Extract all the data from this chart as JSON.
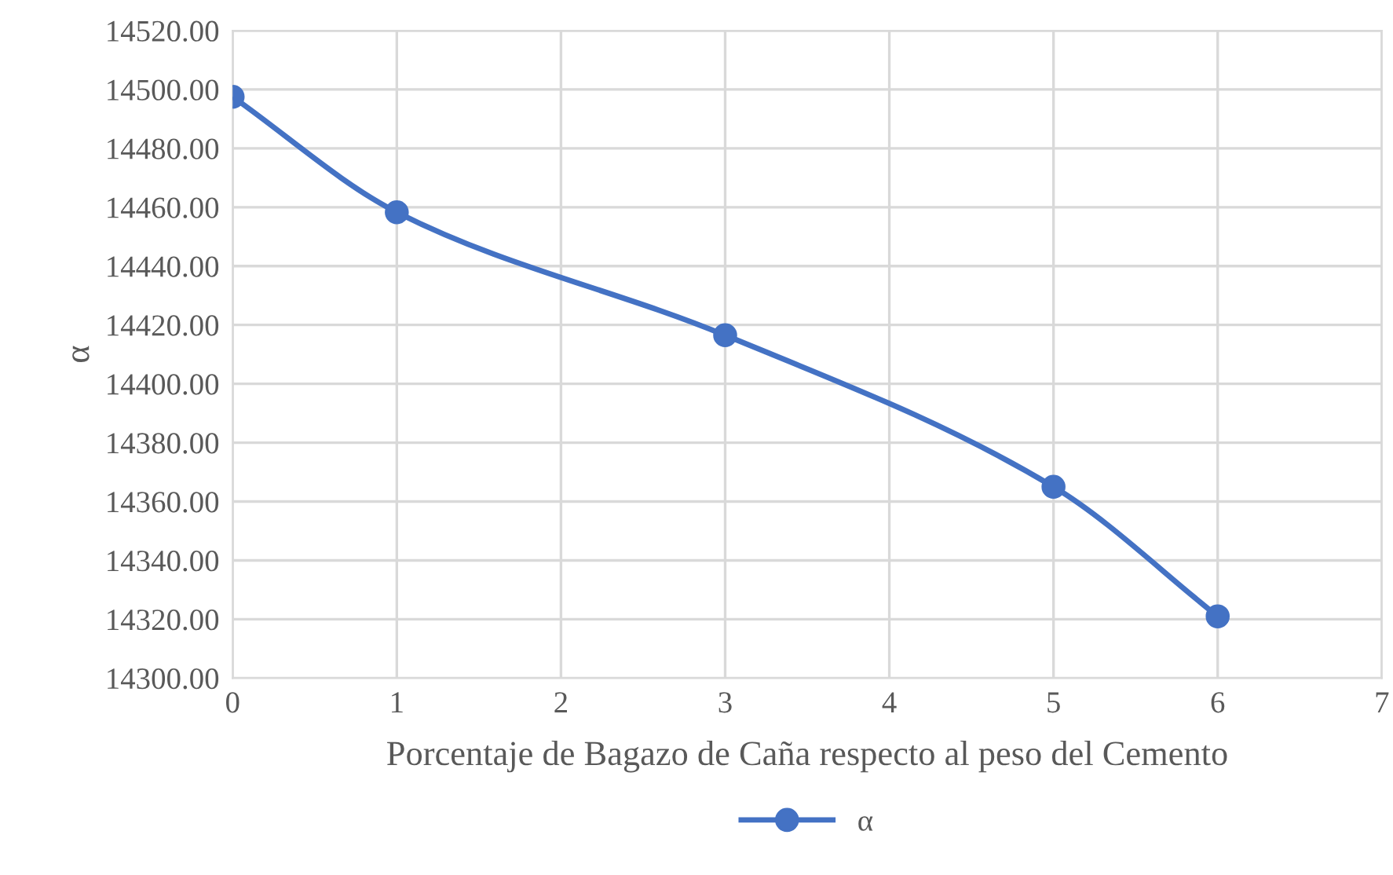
{
  "chart_data": {
    "type": "line",
    "xlabel": "Porcentaje de Bagazo de Caña respecto al peso del Cemento",
    "ylabel": "α",
    "x": [
      0,
      1,
      3,
      5,
      6
    ],
    "series": [
      {
        "name": "α",
        "color": "#4472c4",
        "values": [
          14497.5,
          14458.3,
          14416.5,
          14365,
          14321
        ]
      }
    ],
    "xlim": [
      0,
      7
    ],
    "xticks": [
      0,
      1,
      2,
      3,
      4,
      5,
      6,
      7
    ],
    "ylim": [
      14300,
      14520
    ],
    "yticks": [
      {
        "value": 14300,
        "label": "14300.00"
      },
      {
        "value": 14320,
        "label": "14320.00"
      },
      {
        "value": 14340,
        "label": "14340.00"
      },
      {
        "value": 14360,
        "label": "14360.00"
      },
      {
        "value": 14380,
        "label": "14380.00"
      },
      {
        "value": 14400,
        "label": "14400.00"
      },
      {
        "value": 14420,
        "label": "14420.00"
      },
      {
        "value": 14440,
        "label": "14440.00"
      },
      {
        "value": 14460,
        "label": "14460.00"
      },
      {
        "value": 14480,
        "label": "14480.00"
      },
      {
        "value": 14500,
        "label": "14500.00"
      },
      {
        "value": 14520,
        "label": "14520.00"
      }
    ],
    "grid": true,
    "legend": "bottom",
    "marker": "circle",
    "line_style": "solid"
  }
}
